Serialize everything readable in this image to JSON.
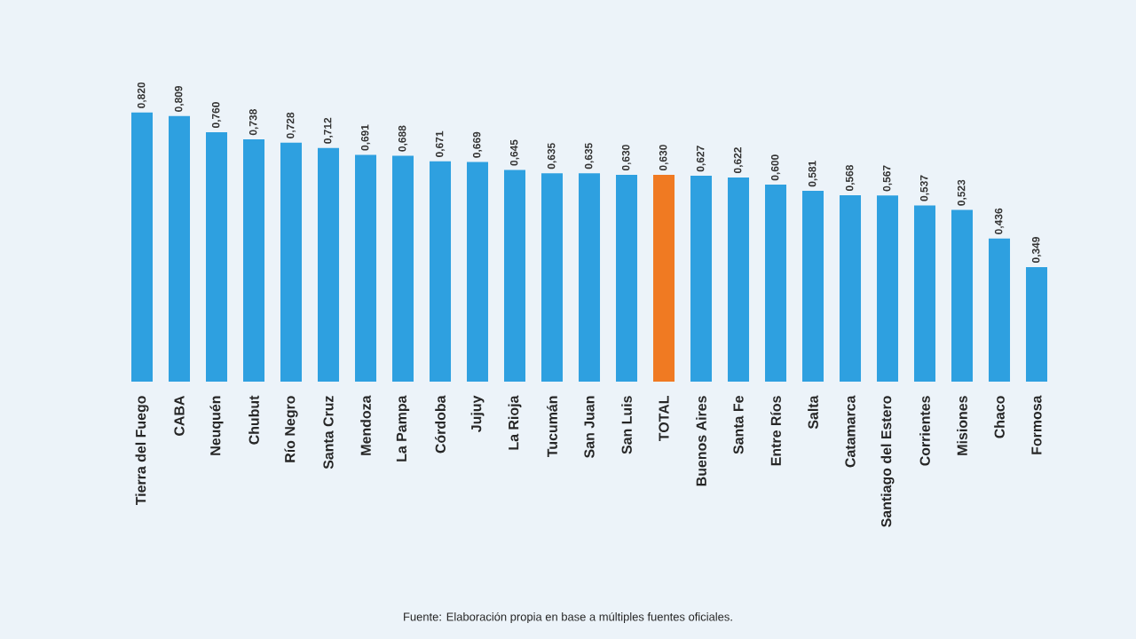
{
  "chart_data": {
    "type": "bar",
    "categories": [
      "Tierra del Fuego",
      "CABA",
      "Neuquén",
      "Chubut",
      "Río Negro",
      "Santa Cruz",
      "Mendoza",
      "La Pampa",
      "Córdoba",
      "Jujuy",
      "La Rioja",
      "Tucumán",
      "San Juan",
      "San Luis",
      "TOTAL",
      "Buenos Aires",
      "Santa Fe",
      "Entre Ríos",
      "Salta",
      "Catamarca",
      "Santiago del Estero",
      "Corrientes",
      "Misiones",
      "Chaco",
      "Formosa"
    ],
    "values": [
      0.82,
      0.809,
      0.76,
      0.738,
      0.728,
      0.712,
      0.691,
      0.688,
      0.671,
      0.669,
      0.645,
      0.635,
      0.635,
      0.63,
      0.63,
      0.627,
      0.622,
      0.6,
      0.581,
      0.568,
      0.567,
      0.537,
      0.523,
      0.436,
      0.349
    ],
    "value_labels": [
      "0,820",
      "0,809",
      "0,760",
      "0,738",
      "0,728",
      "0,712",
      "0,691",
      "0,688",
      "0,671",
      "0,669",
      "0,645",
      "0,635",
      "0,635",
      "0,630",
      "0,630",
      "0,627",
      "0,622",
      "0,600",
      "0,581",
      "0,568",
      "0,567",
      "0,537",
      "0,523",
      "0,436",
      "0,349"
    ],
    "colors": [
      "#2ea0e0",
      "#2ea0e0",
      "#2ea0e0",
      "#2ea0e0",
      "#2ea0e0",
      "#2ea0e0",
      "#2ea0e0",
      "#2ea0e0",
      "#2ea0e0",
      "#2ea0e0",
      "#2ea0e0",
      "#2ea0e0",
      "#2ea0e0",
      "#2ea0e0",
      "#f07a22",
      "#2ea0e0",
      "#2ea0e0",
      "#2ea0e0",
      "#2ea0e0",
      "#2ea0e0",
      "#2ea0e0",
      "#2ea0e0",
      "#2ea0e0",
      "#2ea0e0",
      "#2ea0e0"
    ],
    "tick_labels": "x",
    "annotations": [
      "Fuente: Elaboración propia en base a múltiples fuentes oficiales."
    ]
  }
}
